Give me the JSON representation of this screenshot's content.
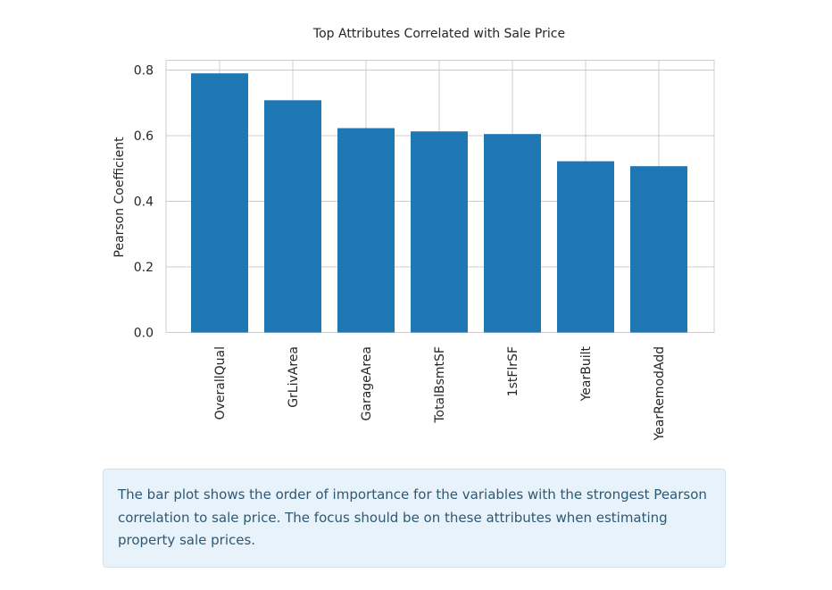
{
  "chart_data": {
    "type": "bar",
    "title": "Top Attributes Correlated with Sale Price",
    "xlabel": "",
    "ylabel": "Pearson Coefficient",
    "categories": [
      "OverallQual",
      "GrLivArea",
      "GarageArea",
      "TotalBsmtSF",
      "1stFlrSF",
      "YearBuilt",
      "YearRemodAdd"
    ],
    "values": [
      0.79,
      0.708,
      0.623,
      0.613,
      0.605,
      0.522,
      0.507
    ],
    "ylim": [
      0,
      0.8
    ],
    "yticks": [
      0.0,
      0.2,
      0.4,
      0.6,
      0.8
    ],
    "ytick_labels": [
      "0.0",
      "0.2",
      "0.4",
      "0.6",
      "0.8"
    ],
    "grid": true,
    "bar_color": "#1f77b4"
  },
  "info_box": {
    "text": "The bar plot shows the order of importance for the variables with the strongest Pearson correlation to sale price. The focus should be on these attributes when estimating property sale prices."
  }
}
